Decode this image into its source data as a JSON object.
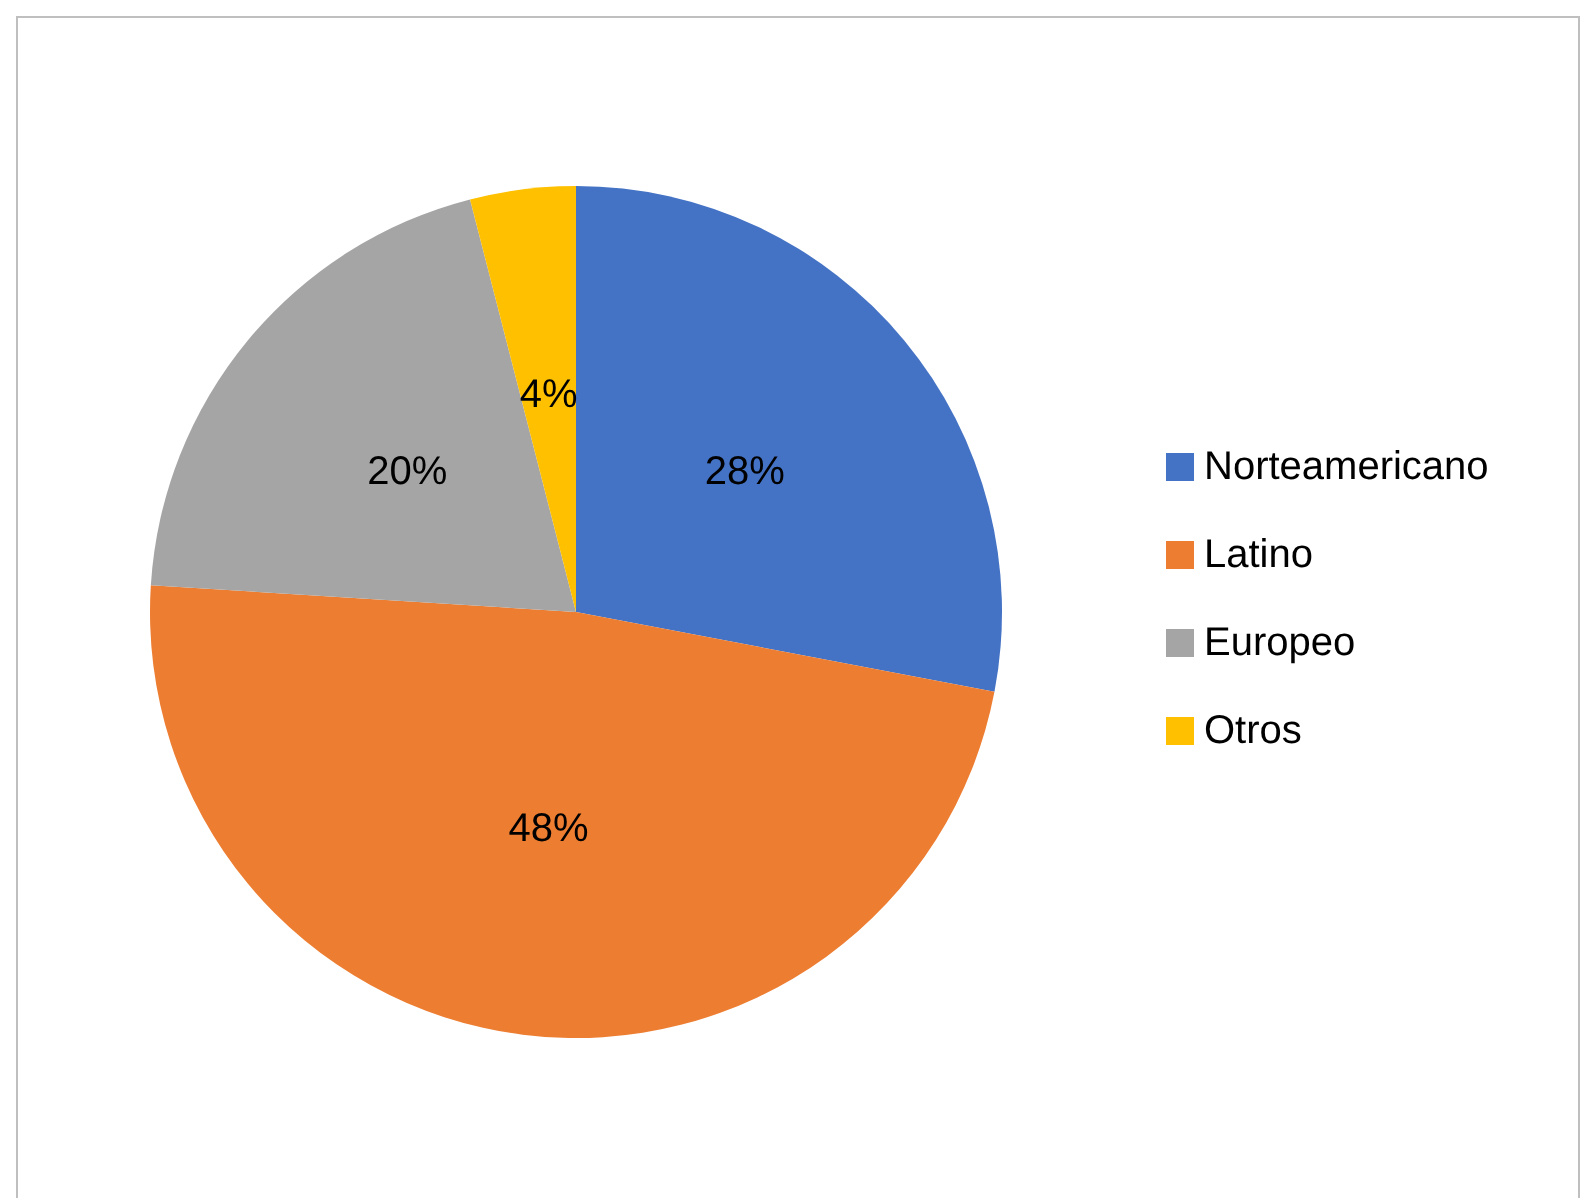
{
  "chart_data": {
    "type": "pie",
    "categories": [
      "Norteamericano",
      "Latino",
      "Europeo",
      "Otros"
    ],
    "values": [
      28,
      48,
      20,
      4
    ],
    "colors": [
      "#4472c4",
      "#ed7d31",
      "#a5a5a5",
      "#ffc000"
    ],
    "value_labels": [
      "28%",
      "48%",
      "20%",
      "4%"
    ],
    "legend": "right"
  }
}
